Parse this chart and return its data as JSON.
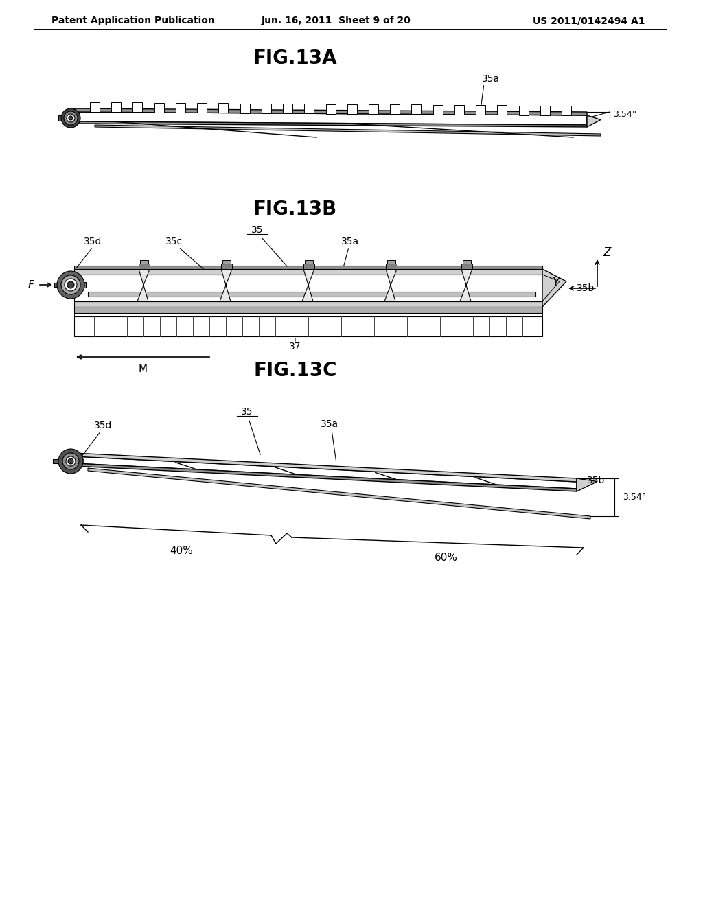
{
  "bg_color": "#ffffff",
  "line_color": "#000000",
  "header_left": "Patent Application Publication",
  "header_center": "Jun. 16, 2011  Sheet 9 of 20",
  "header_right": "US 2011/0142494 A1",
  "fig13a_title": "FIG.13A",
  "fig13b_title": "FIG.13B",
  "fig13c_title": "FIG.13C",
  "header_fontsize": 10,
  "title_fontsize": 20,
  "label_fontsize": 10
}
